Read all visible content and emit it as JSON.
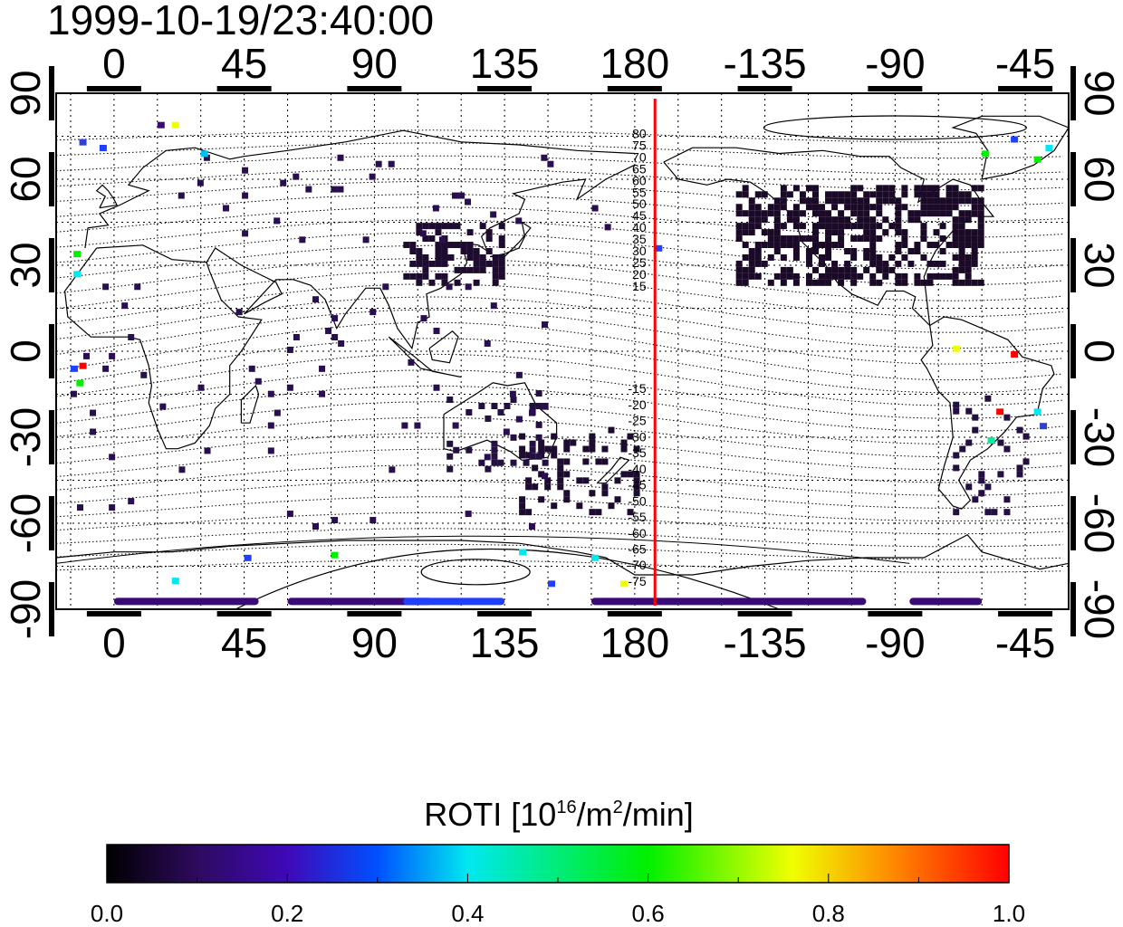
{
  "timestamp": "1999-10-19/23:40:00",
  "map": {
    "lon_ticks": [
      "0",
      "45",
      "90",
      "135",
      "180",
      "-135",
      "-90",
      "-45"
    ],
    "lat_ticks": [
      "90",
      "60",
      "30",
      "0",
      "-30",
      "-60",
      "-90"
    ],
    "lon_range_deg": [
      -20,
      330
    ],
    "lat_range_deg": [
      -90,
      90
    ],
    "grid_step_deg": 15,
    "grid": true,
    "meridian_marker_lon": 187,
    "meridian_marker_color": "#ff0000",
    "magnetic_latitude_labels_north": [
      "80",
      "75",
      "70",
      "65",
      "60",
      "55",
      "50",
      "45",
      "40",
      "35",
      "30",
      "25",
      "20",
      "15"
    ],
    "magnetic_latitude_labels_south": [
      "-15",
      "-20",
      "-25",
      "-30",
      "-35",
      "-40",
      "-45",
      "-50",
      "-55",
      "-60",
      "-65",
      "-70",
      "-75"
    ]
  },
  "colorbar": {
    "title_prefix": "ROTI  [10",
    "title_sup1": "16",
    "title_mid": "/m",
    "title_sup2": "2",
    "title_suffix": "/min]",
    "ticks": [
      "0.0",
      "0.2",
      "0.4",
      "0.6",
      "0.8",
      "1.0"
    ],
    "range": [
      0.0,
      1.0
    ],
    "colors": [
      "#000000",
      "#3a0a78",
      "#2a00e8",
      "#00e8f0",
      "#00f000",
      "#f0ff00",
      "#ff0000"
    ]
  }
}
